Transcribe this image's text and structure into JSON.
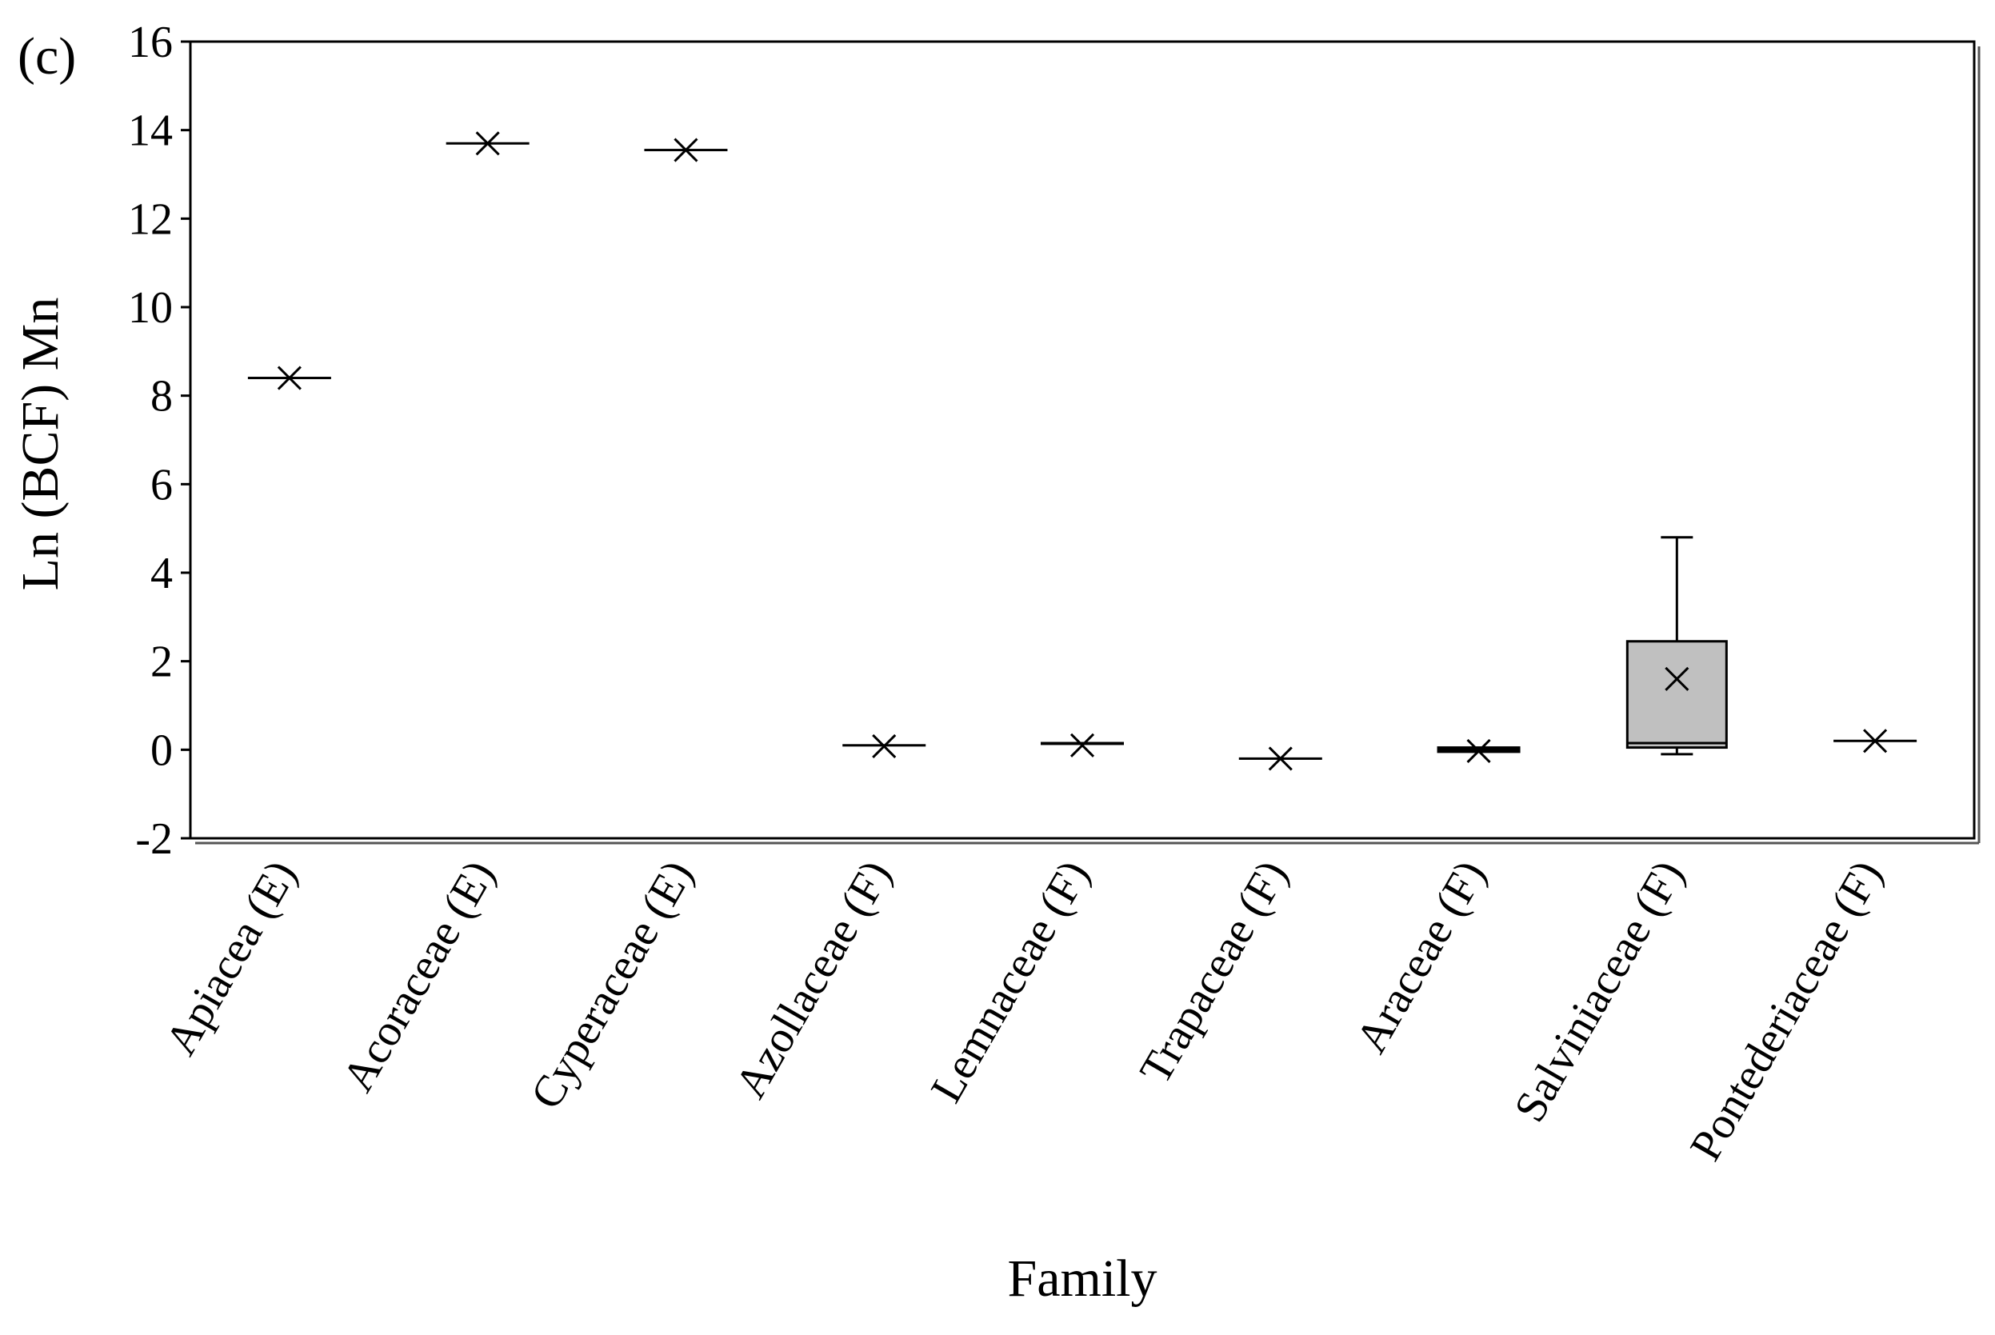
{
  "chart_data": {
    "type": "box",
    "panel_label": "(c)",
    "xlabel": "Family",
    "ylabel": "Ln (BCF) Mn",
    "ylim": [
      -2,
      16
    ],
    "yticks": [
      -2,
      0,
      2,
      4,
      6,
      8,
      10,
      12,
      14,
      16
    ],
    "grid": false,
    "categories": [
      "Apiacea (E)",
      "Acoraceae (E)",
      "Cyperaceae (E)",
      "Azollaceae (F)",
      "Lemnaceae (F)",
      "Trapaceae (F)",
      "Araceae (F)",
      "Salviniaceae (F)",
      "Pontederiaceae (F)"
    ],
    "boxes": [
      {
        "category": "Apiacea (E)",
        "min": 8.4,
        "q1": 8.4,
        "median": 8.4,
        "q3": 8.4,
        "max": 8.4,
        "mean": 8.4
      },
      {
        "category": "Acoraceae (E)",
        "min": 13.7,
        "q1": 13.7,
        "median": 13.7,
        "q3": 13.7,
        "max": 13.7,
        "mean": 13.7
      },
      {
        "category": "Cyperaceae (E)",
        "min": 13.55,
        "q1": 13.55,
        "median": 13.55,
        "q3": 13.55,
        "max": 13.55,
        "mean": 13.55
      },
      {
        "category": "Azollaceae (F)",
        "min": 0.05,
        "q1": 0.05,
        "median": 0.05,
        "q3": 0.1,
        "max": 0.1,
        "mean": 0.08
      },
      {
        "category": "Lemnaceae (F)",
        "min": 0.08,
        "q1": 0.08,
        "median": 0.1,
        "q3": 0.15,
        "max": 0.15,
        "mean": 0.1
      },
      {
        "category": "Trapaceae (F)",
        "min": -0.2,
        "q1": -0.2,
        "median": -0.2,
        "q3": -0.2,
        "max": -0.2,
        "mean": -0.2
      },
      {
        "category": "Araceae (F)",
        "min": -0.1,
        "q1": -0.1,
        "median": 0.0,
        "q3": 0.05,
        "max": 0.05,
        "mean": -0.03
      },
      {
        "category": "Salviniaceae (F)",
        "min": -0.1,
        "q1": 0.05,
        "median": 0.15,
        "q3": 2.45,
        "max": 4.8,
        "mean": 1.6
      },
      {
        "category": "Pontederiaceae (F)",
        "min": 0.2,
        "q1": 0.2,
        "median": 0.2,
        "q3": 0.2,
        "max": 0.2,
        "mean": 0.2
      }
    ],
    "colors": {
      "box_fill": "#c0c0c0",
      "stroke": "#000000"
    }
  }
}
